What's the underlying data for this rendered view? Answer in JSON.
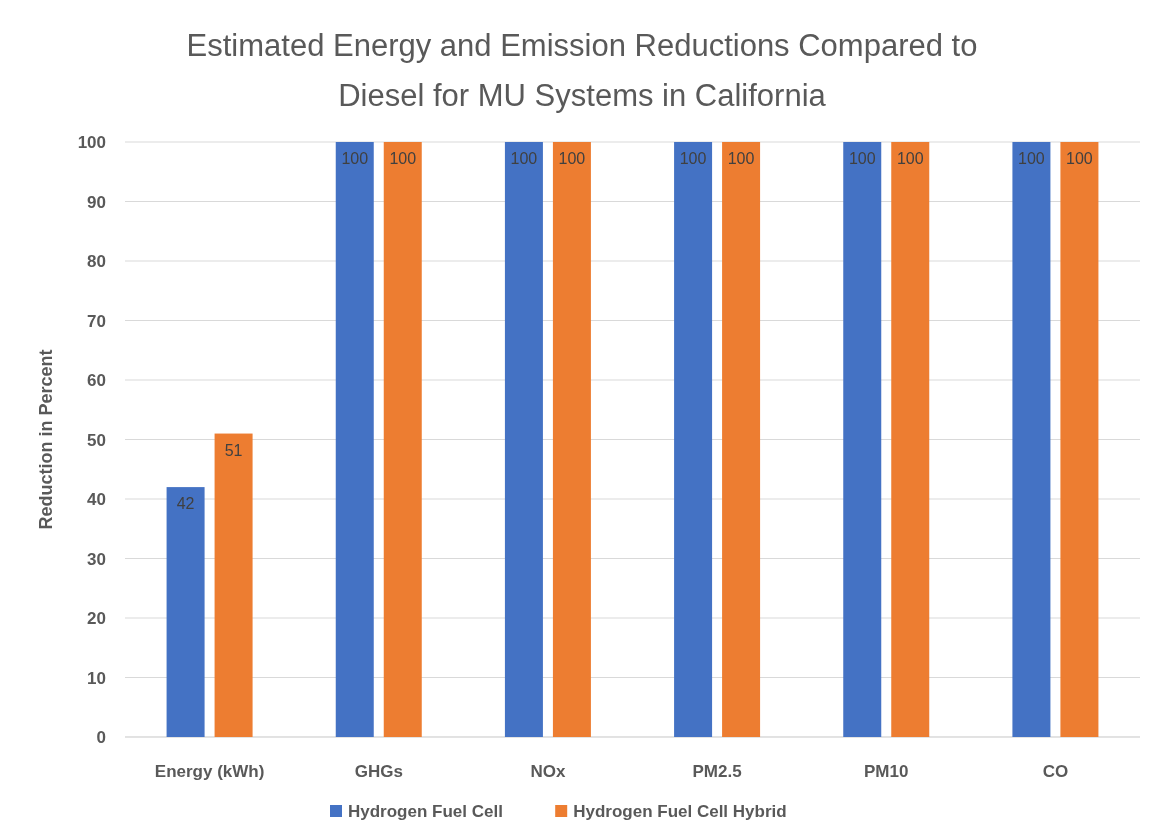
{
  "chart_data": {
    "type": "bar",
    "title": "Estimated Energy and Emission Reductions Compared to Diesel for MU Systems in California",
    "ylabel": "Reduction in Percent",
    "categories": [
      "Energy (kWh)",
      "GHGs",
      "NOx",
      "PM2.5",
      "PM10",
      "CO"
    ],
    "series": [
      {
        "name": "Hydrogen Fuel Cell",
        "color": "#4472c4",
        "values": [
          42,
          100,
          100,
          100,
          100,
          100
        ]
      },
      {
        "name": "Hydrogen Fuel Cell Hybrid",
        "color": "#ed7d31",
        "values": [
          51,
          100,
          100,
          100,
          100,
          100
        ]
      }
    ],
    "ylim": [
      0,
      100
    ],
    "yticks": [
      0,
      10,
      20,
      30,
      40,
      50,
      60,
      70,
      80,
      90,
      100
    ],
    "grid": "y",
    "legend": "bottom",
    "data_labels": true
  }
}
